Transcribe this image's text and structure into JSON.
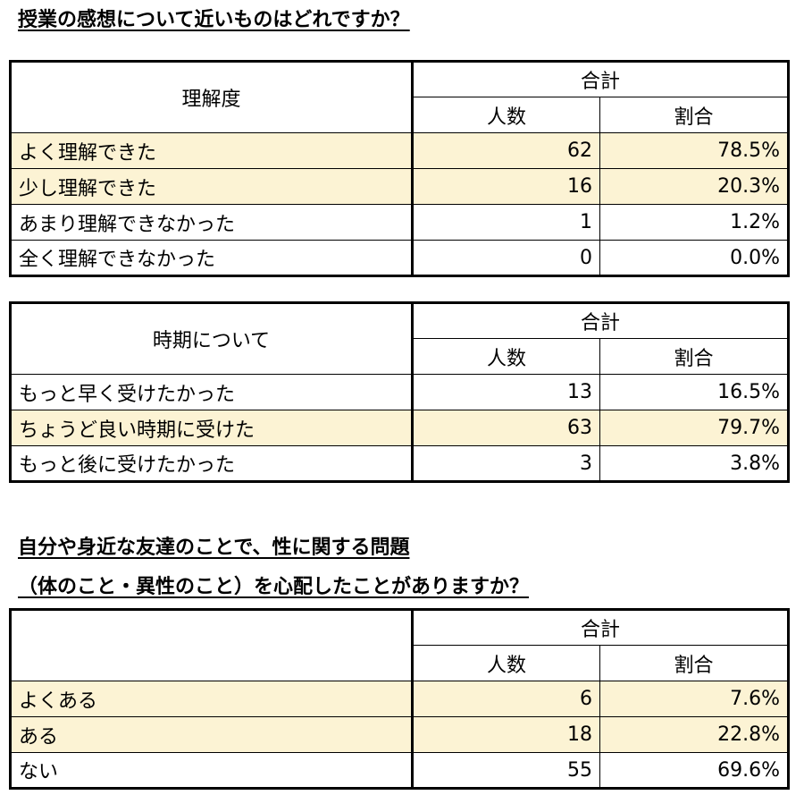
{
  "title1": "授業の感想について近いものはどれですか？",
  "title2_line1": "自分や身近な友達のことで、性に関する問題",
  "title2_line2": "（体のこと・異性のこと）を心配したことがありますか？",
  "header": {
    "total": "合計",
    "count": "人数",
    "ratio": "割合"
  },
  "highlight_color": "#fcf3d4",
  "table1": {
    "label": "理解度",
    "rows": [
      {
        "label": "よく理解できた",
        "count": "62",
        "ratio": "78.5%"
      },
      {
        "label": "少し理解できた",
        "count": "16",
        "ratio": "20.3%"
      },
      {
        "label": "あまり理解できなかった",
        "count": "1",
        "ratio": "1.2%"
      },
      {
        "label": "全く理解できなかった",
        "count": "0",
        "ratio": "0.0%"
      }
    ]
  },
  "table2": {
    "label": "時期について",
    "rows": [
      {
        "label": "もっと早く受けたかった",
        "count": "13",
        "ratio": "16.5%"
      },
      {
        "label": "ちょうど良い時期に受けた",
        "count": "63",
        "ratio": "79.7%"
      },
      {
        "label": "もっと後に受けたかった",
        "count": "3",
        "ratio": "3.8%"
      }
    ]
  },
  "table3": {
    "label": "",
    "rows": [
      {
        "label": "よくある",
        "count": "6",
        "ratio": "7.6%"
      },
      {
        "label": "ある",
        "count": "18",
        "ratio": "22.8%"
      },
      {
        "label": "ない",
        "count": "55",
        "ratio": "69.6%"
      }
    ]
  }
}
